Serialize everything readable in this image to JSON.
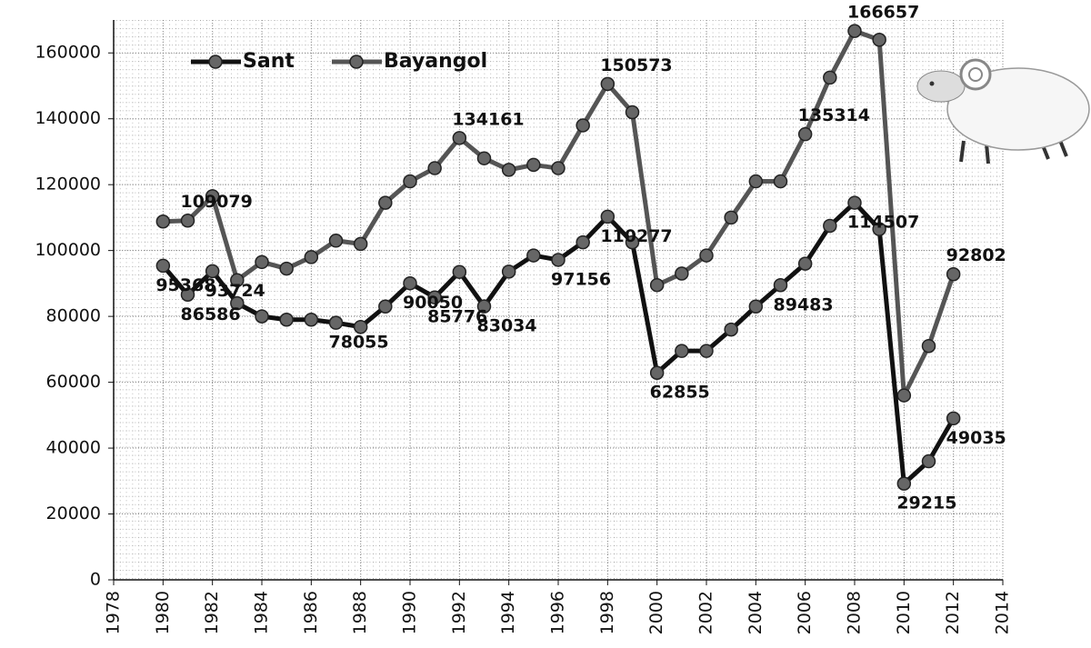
{
  "chart_data": {
    "type": "line",
    "x": [
      1980,
      1981,
      1982,
      1983,
      1984,
      1985,
      1986,
      1987,
      1988,
      1989,
      1990,
      1991,
      1992,
      1993,
      1994,
      1995,
      1996,
      1997,
      1998,
      1999,
      2000,
      2001,
      2002,
      2003,
      2004,
      2005,
      2006,
      2007,
      2008,
      2009,
      2010,
      2011,
      2012
    ],
    "series": [
      {
        "name": "Sant",
        "color": "#111111",
        "values": [
          95368,
          86586,
          93724,
          84000,
          80000,
          79000,
          79000,
          78055,
          76800,
          83000,
          90050,
          85776,
          93500,
          83034,
          93600,
          98500,
          97156,
          102500,
          110277,
          102500,
          62855,
          69500,
          69500,
          76000,
          83000,
          89483,
          96000,
          107500,
          114507,
          106500,
          29215,
          36000,
          49035
        ],
        "value_labels": [
          "95368",
          "86586",
          "93724",
          null,
          null,
          null,
          null,
          "78055",
          null,
          null,
          "90050",
          "85776",
          null,
          "83034",
          null,
          null,
          "97156",
          null,
          "110277",
          null,
          "62855",
          null,
          null,
          null,
          null,
          "89483",
          null,
          null,
          "114507",
          null,
          "29215",
          null,
          "49035"
        ]
      },
      {
        "name": "Bayangol",
        "color": "#555555",
        "values": [
          108800,
          109079,
          116500,
          91000,
          96500,
          94500,
          98000,
          103000,
          102000,
          114500,
          121000,
          125000,
          134161,
          128000,
          124500,
          126000,
          125000,
          138000,
          150573,
          142000,
          89500,
          93000,
          98500,
          110000,
          121000,
          121000,
          135314,
          152500,
          166657,
          164000,
          56000,
          71000,
          92802
        ],
        "value_labels": [
          null,
          "109079",
          null,
          null,
          null,
          null,
          null,
          null,
          null,
          null,
          null,
          null,
          "134161",
          null,
          null,
          null,
          null,
          null,
          "150573",
          null,
          null,
          null,
          null,
          null,
          null,
          null,
          "135314",
          null,
          "166657",
          null,
          null,
          null,
          "92802"
        ]
      }
    ],
    "xlim": [
      1978,
      2014
    ],
    "xticks": [
      1978,
      1980,
      1982,
      1984,
      1986,
      1988,
      1990,
      1992,
      1994,
      1996,
      1998,
      2000,
      2002,
      2004,
      2006,
      2008,
      2010,
      2012,
      2014
    ],
    "ylim": [
      0,
      170000
    ],
    "yticks": [
      0,
      20000,
      40000,
      60000,
      80000,
      100000,
      120000,
      140000,
      160000
    ],
    "grid": true
  }
}
